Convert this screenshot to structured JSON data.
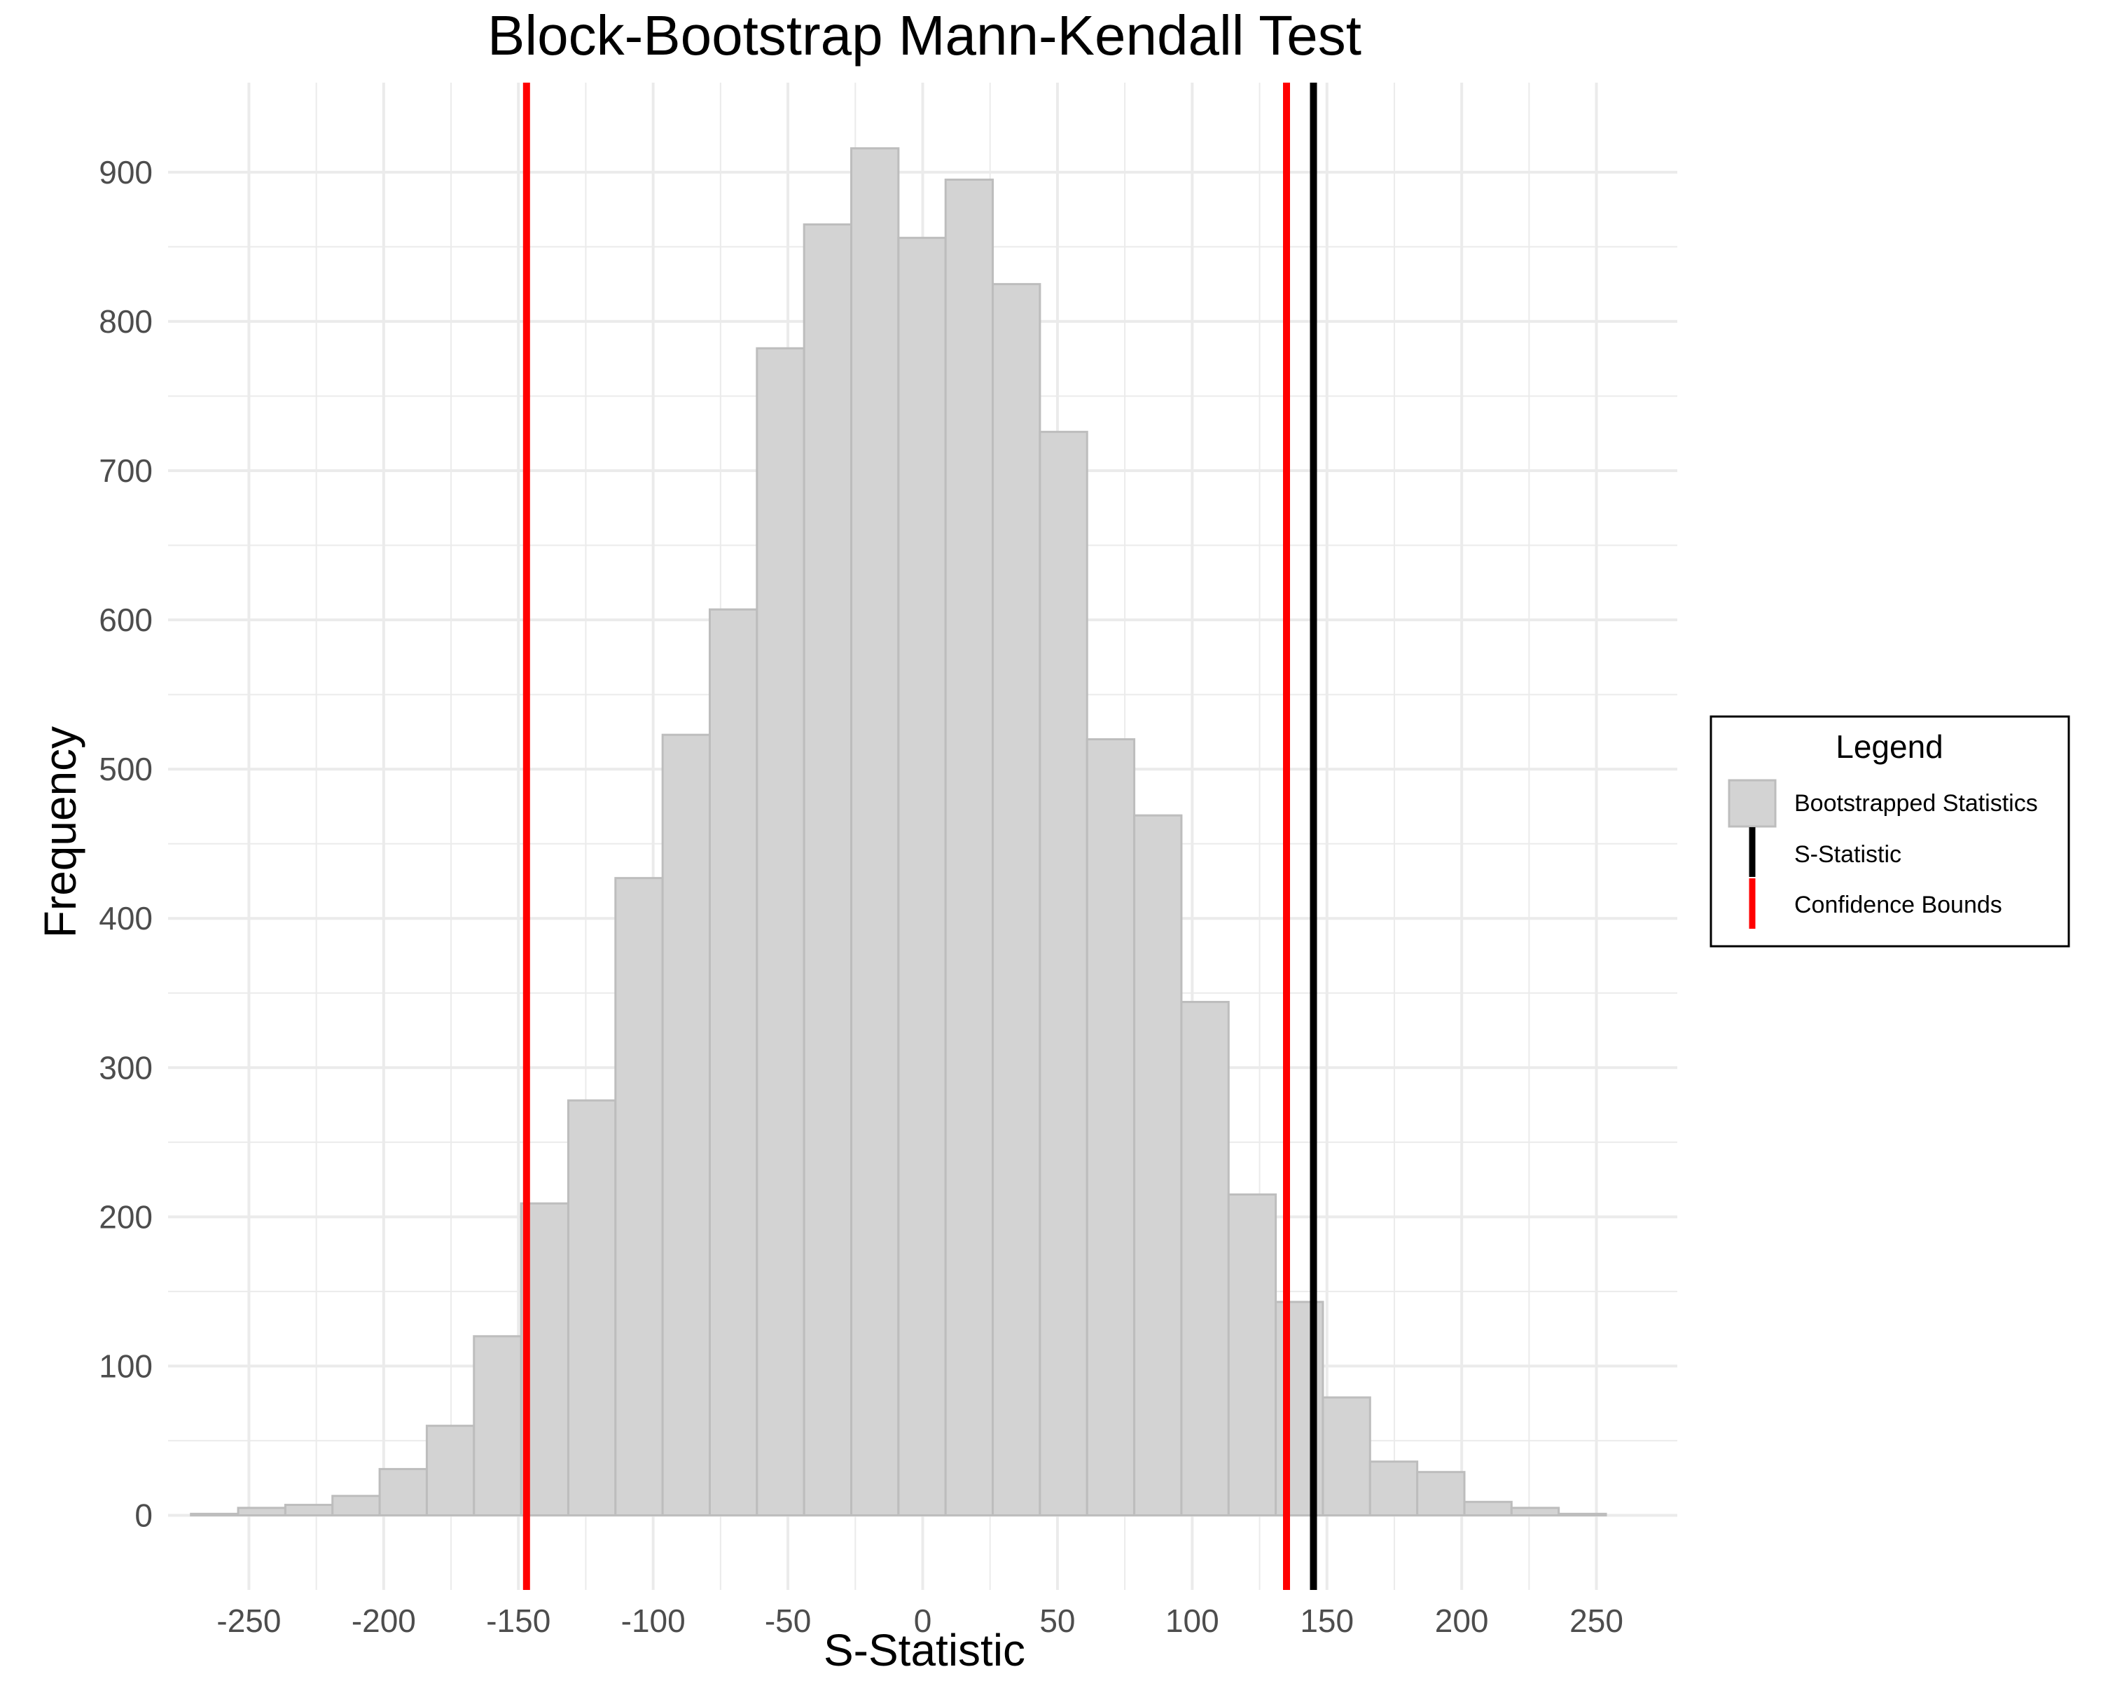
{
  "chart_data": {
    "type": "histogram",
    "title": "Block-Bootstrap Mann-Kendall Test",
    "xlabel": "S-Statistic",
    "ylabel": "Frequency",
    "xlim": [
      -280,
      280
    ],
    "ylim": [
      -50,
      960
    ],
    "x_ticks": [
      -250,
      -200,
      -150,
      -100,
      -50,
      0,
      50,
      100,
      150,
      200,
      250
    ],
    "y_ticks": [
      0,
      100,
      200,
      300,
      400,
      500,
      600,
      700,
      800,
      900
    ],
    "grid": true,
    "bins": [
      {
        "x0": -271.5,
        "x1": -254,
        "count": 1
      },
      {
        "x0": -254,
        "x1": -236.5,
        "count": 5
      },
      {
        "x0": -236.5,
        "x1": -219,
        "count": 7
      },
      {
        "x0": -219,
        "x1": -201.5,
        "count": 13
      },
      {
        "x0": -201.5,
        "x1": -184,
        "count": 31
      },
      {
        "x0": -184,
        "x1": -166.5,
        "count": 60
      },
      {
        "x0": -166.5,
        "x1": -149,
        "count": 120
      },
      {
        "x0": -149,
        "x1": -131.5,
        "count": 209
      },
      {
        "x0": -131.5,
        "x1": -114,
        "count": 278
      },
      {
        "x0": -114,
        "x1": -96.5,
        "count": 427
      },
      {
        "x0": -96.5,
        "x1": -79,
        "count": 523
      },
      {
        "x0": -79,
        "x1": -61.5,
        "count": 607
      },
      {
        "x0": -61.5,
        "x1": -44,
        "count": 782
      },
      {
        "x0": -44,
        "x1": -26.5,
        "count": 865
      },
      {
        "x0": -26.5,
        "x1": -9,
        "count": 916
      },
      {
        "x0": -9,
        "x1": 8.5,
        "count": 856
      },
      {
        "x0": 8.5,
        "x1": 26,
        "count": 895
      },
      {
        "x0": 26,
        "x1": 43.5,
        "count": 825
      },
      {
        "x0": 43.5,
        "x1": 61,
        "count": 726
      },
      {
        "x0": 61,
        "x1": 78.5,
        "count": 520
      },
      {
        "x0": 78.5,
        "x1": 96,
        "count": 469
      },
      {
        "x0": 96,
        "x1": 113.5,
        "count": 344
      },
      {
        "x0": 113.5,
        "x1": 131,
        "count": 215
      },
      {
        "x0": 131,
        "x1": 148.5,
        "count": 143
      },
      {
        "x0": 148.5,
        "x1": 166,
        "count": 79
      },
      {
        "x0": 166,
        "x1": 183.5,
        "count": 36
      },
      {
        "x0": 183.5,
        "x1": 201,
        "count": 29
      },
      {
        "x0": 201,
        "x1": 218.5,
        "count": 9
      },
      {
        "x0": 218.5,
        "x1": 236,
        "count": 5
      },
      {
        "x0": 236,
        "x1": 253.5,
        "count": 1
      }
    ],
    "s_statistic": 145,
    "confidence_bounds": [
      -147,
      135
    ],
    "colors": {
      "bars_fill": "#d3d3d3",
      "bars_stroke": "#bdbdbd",
      "s_statistic": "#000000",
      "confidence_bounds": "#ff0000",
      "grid": "#ebebeb"
    },
    "legend": {
      "title": "Legend",
      "position": "right",
      "items": [
        {
          "label": "Bootstrapped Statistics",
          "kind": "fill"
        },
        {
          "label": "S-Statistic",
          "kind": "line-black"
        },
        {
          "label": "Confidence Bounds",
          "kind": "line-red"
        }
      ]
    }
  }
}
